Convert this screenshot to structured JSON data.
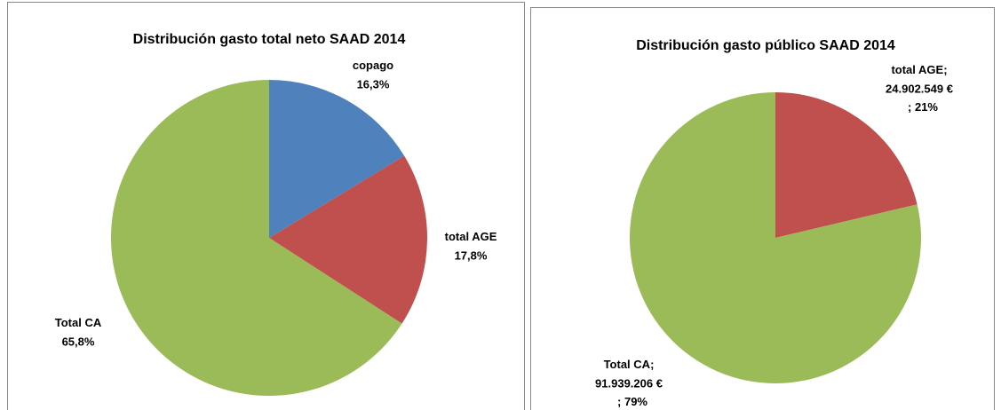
{
  "chart_data": [
    {
      "type": "pie",
      "title": "Distribución gasto total neto SAAD 2014",
      "categories": [
        "copago",
        "total AGE",
        "Total CA"
      ],
      "values": [
        16.3,
        17.8,
        65.8
      ],
      "value_labels": [
        "16,3%",
        "17,8%",
        "65,8%"
      ],
      "colors": [
        "#4f81bd",
        "#c0504d",
        "#9bbb59"
      ]
    },
    {
      "type": "pie",
      "title": "Distribución gasto público SAAD 2014",
      "categories": [
        "total AGE",
        "Total CA"
      ],
      "values": [
        24902549,
        91939206
      ],
      "value_labels": [
        "24.902.549 €",
        "91.939.206 €"
      ],
      "percents": [
        21,
        79
      ],
      "percent_labels": [
        "21%",
        "79%"
      ],
      "separator": ";",
      "colors": [
        "#c0504d",
        "#9bbb59"
      ]
    }
  ]
}
